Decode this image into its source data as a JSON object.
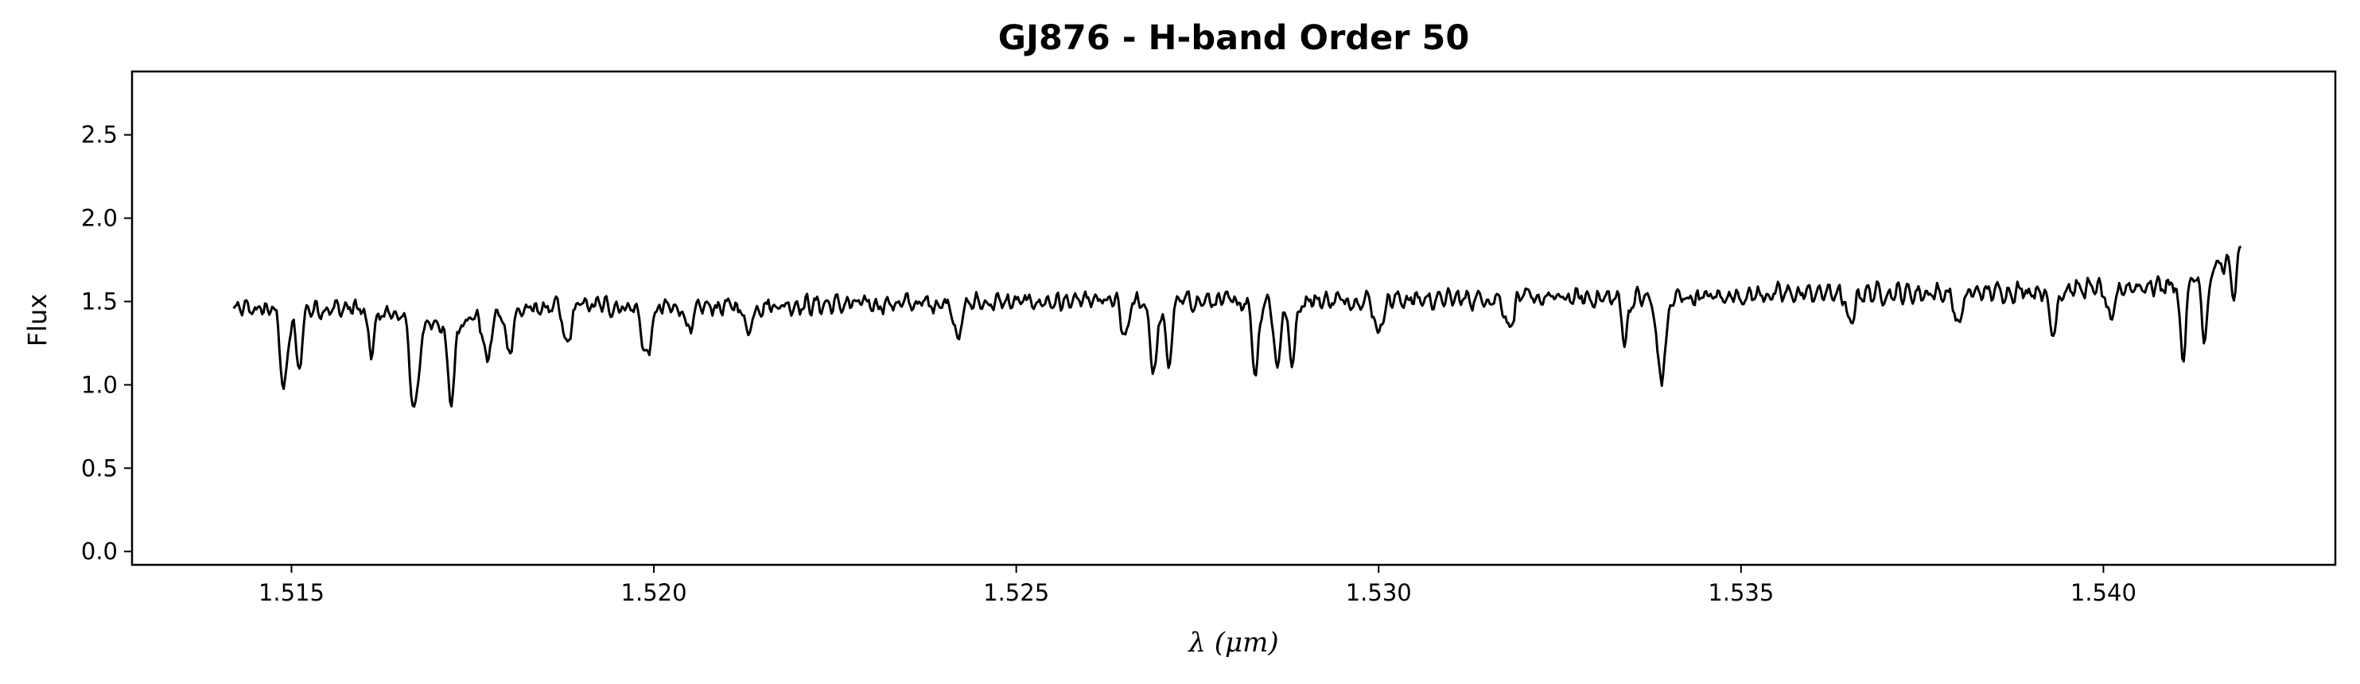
{
  "chart_data": {
    "type": "line",
    "title": "GJ876 - H-band Order 50",
    "xlabel": "λ (μm)",
    "ylabel": "Flux",
    "xlim": [
      1.5128,
      1.5432
    ],
    "ylim": [
      -0.08,
      2.88
    ],
    "xticks": [
      "1.515",
      "1.520",
      "1.525",
      "1.530",
      "1.535",
      "1.540"
    ],
    "xtick_values": [
      1.515,
      1.52,
      1.525,
      1.53,
      1.535,
      1.54
    ],
    "yticks": [
      "0.0",
      "0.5",
      "1.0",
      "1.5",
      "2.0",
      "2.5"
    ],
    "ytick_values": [
      0.0,
      0.5,
      1.0,
      1.5,
      2.0,
      2.5
    ],
    "grid": false,
    "line_color": "#000000",
    "series": [
      {
        "x_start": 1.5142,
        "x_end": 1.5419,
        "continuum": [
          [
            1.5142,
            1.45
          ],
          [
            1.516,
            1.46
          ],
          [
            1.517,
            1.37
          ],
          [
            1.518,
            1.44
          ],
          [
            1.519,
            1.48
          ],
          [
            1.52,
            1.46
          ],
          [
            1.522,
            1.48
          ],
          [
            1.524,
            1.49
          ],
          [
            1.526,
            1.5
          ],
          [
            1.528,
            1.5
          ],
          [
            1.53,
            1.51
          ],
          [
            1.532,
            1.52
          ],
          [
            1.534,
            1.52
          ],
          [
            1.536,
            1.55
          ],
          [
            1.538,
            1.55
          ],
          [
            1.54,
            1.58
          ],
          [
            1.541,
            1.6
          ],
          [
            1.5415,
            1.68
          ],
          [
            1.5419,
            1.82
          ]
        ],
        "absorption_lines": [
          [
            1.5149,
            0.48,
            5e-05
          ],
          [
            1.5151,
            0.38,
            4e-05
          ],
          [
            1.5161,
            0.25,
            5e-05
          ],
          [
            1.5167,
            0.55,
            6e-05
          ],
          [
            1.5172,
            0.48,
            5e-05
          ],
          [
            1.5177,
            0.28,
            5e-05
          ],
          [
            1.518,
            0.23,
            5e-05
          ],
          [
            1.5188,
            0.25,
            5e-05
          ],
          [
            1.5199,
            0.3,
            6e-05
          ],
          [
            1.5205,
            0.15,
            5e-05
          ],
          [
            1.5213,
            0.15,
            5e-05
          ],
          [
            1.5242,
            0.2,
            5e-05
          ],
          [
            1.5265,
            0.22,
            5e-05
          ],
          [
            1.5269,
            0.42,
            5e-05
          ],
          [
            1.5271,
            0.4,
            4e-05
          ],
          [
            1.5283,
            0.45,
            4e-05
          ],
          [
            1.5286,
            0.42,
            4e-05
          ],
          [
            1.5288,
            0.35,
            5e-05
          ],
          [
            1.53,
            0.2,
            5e-05
          ],
          [
            1.5318,
            0.18,
            5e-05
          ],
          [
            1.5334,
            0.25,
            4e-05
          ],
          [
            1.5339,
            0.48,
            6e-05
          ],
          [
            1.5365,
            0.2,
            5e-05
          ],
          [
            1.538,
            0.2,
            5e-05
          ],
          [
            1.5393,
            0.25,
            5e-05
          ],
          [
            1.5401,
            0.22,
            5e-05
          ],
          [
            1.5411,
            0.45,
            4e-05
          ],
          [
            1.5414,
            0.4,
            4e-05
          ],
          [
            1.5418,
            0.25,
            4e-05
          ]
        ],
        "noise_amplitude": 0.05
      }
    ]
  }
}
